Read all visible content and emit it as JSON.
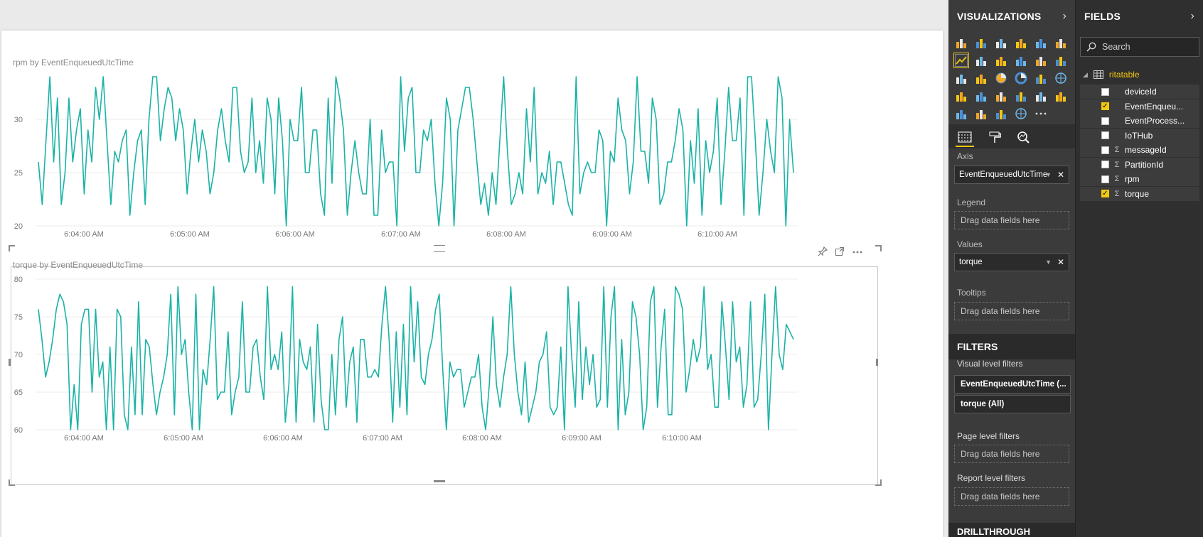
{
  "colors": {
    "line": "#1ab3a6",
    "accent": "#f2c811",
    "pane_bg": "#3b3b3b"
  },
  "visuals": [
    {
      "title": "rpm by EventEnqueuedUtcTime",
      "chart_data": {
        "type": "line",
        "xlabel": "",
        "ylabel": "",
        "ylim": [
          20,
          34
        ],
        "y_ticks": [
          "20",
          "25",
          "30"
        ],
        "x_tick_labels": [
          "6:04:00 AM",
          "6:05:00 AM",
          "6:06:00 AM",
          "6:07:00 AM",
          "6:08:00 AM",
          "6:09:00 AM",
          "6:10:00 AM"
        ],
        "series": [
          {
            "values": [
              26,
              22,
              28,
              34,
              26,
              32,
              22,
              25,
              32,
              26,
              29,
              31,
              23,
              29,
              26,
              33,
              30,
              34,
              28,
              22,
              27,
              26,
              28,
              29,
              21,
              25,
              28,
              29,
              22,
              30,
              34,
              34,
              28,
              31,
              33,
              32,
              28,
              31,
              29,
              23,
              27,
              30,
              26,
              29,
              27,
              23,
              25,
              29,
              31,
              28,
              26,
              33,
              33,
              27,
              25,
              26,
              32,
              25,
              28,
              24,
              32,
              30,
              23,
              32,
              28,
              20,
              30,
              28,
              28,
              33,
              25,
              25,
              29,
              29,
              23,
              21,
              32,
              24,
              34,
              32,
              29,
              21,
              25,
              28,
              25,
              23,
              23,
              30,
              21,
              21,
              29,
              25,
              26,
              26,
              20,
              34,
              27,
              32,
              33,
              25,
              25,
              29,
              28,
              30,
              24,
              20,
              24,
              32,
              30,
              20,
              29,
              31,
              33,
              33,
              30,
              26,
              22,
              24,
              21,
              25,
              22,
              28,
              34,
              27,
              22,
              23,
              25,
              23,
              31,
              26,
              33,
              23,
              25,
              24,
              27,
              22,
              26,
              26,
              24,
              22,
              21,
              34,
              23,
              25,
              26,
              25,
              25,
              29,
              28,
              20,
              27,
              26,
              32,
              29,
              28,
              23,
              26,
              34,
              27,
              27,
              24,
              32,
              30,
              22,
              23,
              26,
              26,
              28,
              31,
              29,
              20,
              28,
              24,
              31,
              21,
              28,
              25,
              27,
              32,
              22,
              27,
              33,
              28,
              28,
              32,
              21,
              34,
              34,
              28,
              21,
              25,
              30,
              27,
              25,
              34,
              32,
              20,
              30,
              25
            ]
          }
        ]
      }
    },
    {
      "title": "torque by EventEnqueuedUtcTime",
      "chart_data": {
        "type": "line",
        "xlabel": "",
        "ylabel": "",
        "ylim": [
          60,
          80
        ],
        "y_ticks": [
          "60",
          "65",
          "70",
          "75",
          "80"
        ],
        "x_tick_labels": [
          "6:04:00 AM",
          "6:05:00 AM",
          "6:06:00 AM",
          "6:07:00 AM",
          "6:08:00 AM",
          "6:09:00 AM",
          "6:10:00 AM"
        ],
        "series": [
          {
            "values": [
              76,
              72,
              67,
              69,
              72,
              76,
              78,
              77,
              74,
              60,
              66,
              60,
              74,
              76,
              76,
              65,
              76,
              67,
              69,
              60,
              71,
              60,
              76,
              75,
              62,
              60,
              71,
              62,
              77,
              62,
              72,
              71,
              66,
              62,
              65,
              67,
              70,
              78,
              62,
              79,
              70,
              72,
              65,
              60,
              78,
              60,
              68,
              66,
              72,
              79,
              64,
              65,
              65,
              73,
              62,
              65,
              67,
              77,
              65,
              65,
              71,
              72,
              67,
              64,
              79,
              68,
              70,
              68,
              73,
              61,
              66,
              79,
              61,
              72,
              69,
              68,
              71,
              61,
              74,
              64,
              60,
              60,
              70,
              62,
              72,
              75,
              63,
              69,
              71,
              61,
              72,
              72,
              67,
              67,
              68,
              67,
              74,
              79,
              72,
              61,
              73,
              63,
              74,
              62,
              79,
              69,
              77,
              67,
              66,
              70,
              72,
              76,
              78,
              68,
              60,
              69,
              67,
              68,
              68,
              63,
              65,
              67,
              67,
              70,
              63,
              60,
              66,
              75,
              66,
              63,
              67,
              70,
              79,
              70,
              65,
              62,
              69,
              61,
              63,
              65,
              69,
              70,
              73,
              63,
              62,
              63,
              71,
              60,
              79,
              70,
              63,
              77,
              64,
              71,
              66,
              70,
              63,
              64,
              79,
              63,
              75,
              79,
              60,
              72,
              62,
              65,
              77,
              75,
              70,
              60,
              63,
              77,
              79,
              63,
              71,
              76,
              62,
              62,
              79,
              78,
              76,
              65,
              68,
              72,
              69,
              71,
              79,
              68,
              70,
              63,
              63,
              77,
              71,
              64,
              77,
              69,
              71,
              63,
              66,
              77,
              63,
              64,
              70,
              78,
              60,
              70,
              79,
              70,
              68,
              74,
              73,
              72
            ]
          }
        ]
      }
    }
  ],
  "visualizations_pane": {
    "header": "VISUALIZATIONS",
    "wells": {
      "axis_label": "Axis",
      "axis_value": "EventEnqueuedUtcTime",
      "legend_label": "Legend",
      "legend_drop": "Drag data fields here",
      "values_label": "Values",
      "values_value": "torque",
      "tooltips_label": "Tooltips",
      "tooltips_drop": "Drag data fields here"
    },
    "filters": {
      "header": "FILTERS",
      "visual_label": "Visual level filters",
      "filter1": "EventEnqueuedUtcTime (...",
      "filter2": "torque (All)",
      "page_label": "Page level filters",
      "page_drop": "Drag data fields here",
      "report_label": "Report level filters",
      "report_drop": "Drag data fields here"
    },
    "drillthrough": "DRILLTHROUGH"
  },
  "fields_pane": {
    "header": "FIELDS",
    "search_placeholder": "Search",
    "table_name": "ritatable",
    "fields": [
      {
        "name": "deviceId",
        "checked": false,
        "sigma": false
      },
      {
        "name": "EventEnqueu...",
        "checked": true,
        "sigma": false
      },
      {
        "name": "EventProcess...",
        "checked": false,
        "sigma": false
      },
      {
        "name": "IoTHub",
        "checked": false,
        "sigma": false
      },
      {
        "name": "messageId",
        "checked": false,
        "sigma": true
      },
      {
        "name": "PartitionId",
        "checked": false,
        "sigma": true
      },
      {
        "name": "rpm",
        "checked": false,
        "sigma": true
      },
      {
        "name": "torque",
        "checked": true,
        "sigma": true
      }
    ]
  }
}
